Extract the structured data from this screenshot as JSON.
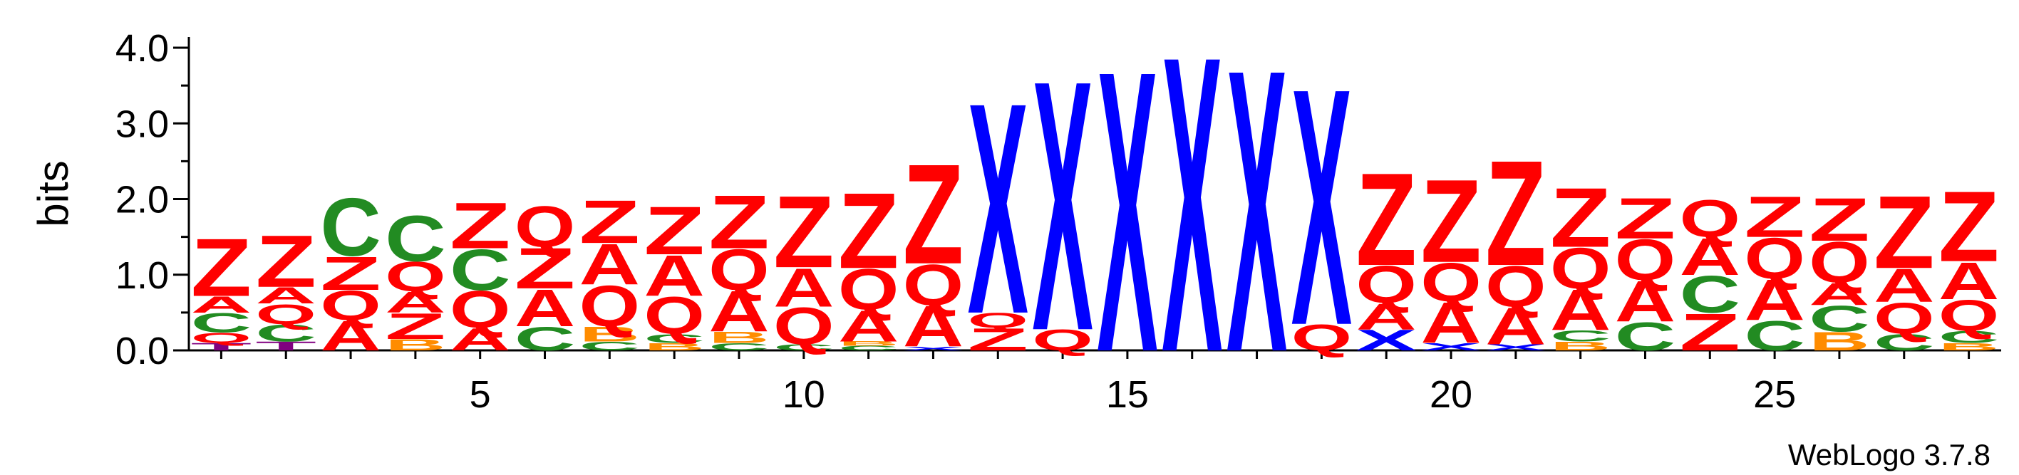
{
  "chart_data": {
    "type": "sequence-logo",
    "title": "",
    "ylabel": "bits",
    "xlabel": "",
    "ylim": [
      0,
      4.0
    ],
    "y_ticks": [
      "0.0",
      "1.0",
      "2.0",
      "3.0",
      "4.0"
    ],
    "x_ticks": [
      "5",
      "10",
      "15",
      "20",
      "25"
    ],
    "x_tick_values": [
      5,
      10,
      15,
      20,
      25
    ],
    "xlim": [
      0.5,
      28.5
    ],
    "footer": "WebLogo 3.7.8",
    "colors": {
      "Z": "#ff0000",
      "Q": "#ff0000",
      "A": "#ff0000",
      "X": "#0000ff",
      "C": "#228b22",
      "B": "#ff8c00",
      "T": "#800080"
    },
    "positions": [
      {
        "pos": 1,
        "letters": [
          [
            "T",
            0.1
          ],
          [
            "Q",
            0.14
          ],
          [
            "C",
            0.26
          ],
          [
            "A",
            0.22
          ],
          [
            "Z",
            0.78
          ]
        ]
      },
      {
        "pos": 2,
        "letters": [
          [
            "T",
            0.12
          ],
          [
            "C",
            0.23
          ],
          [
            "Q",
            0.27
          ],
          [
            "A",
            0.22
          ],
          [
            "Z",
            0.7
          ]
        ]
      },
      {
        "pos": 3,
        "letters": [
          [
            "A",
            0.4
          ],
          [
            "Q",
            0.4
          ],
          [
            "Z",
            0.45
          ],
          [
            "C",
            0.78
          ]
        ]
      },
      {
        "pos": 4,
        "letters": [
          [
            "B",
            0.15
          ],
          [
            "Z",
            0.35
          ],
          [
            "A",
            0.28
          ],
          [
            "Q",
            0.4
          ],
          [
            "C",
            0.62
          ]
        ]
      },
      {
        "pos": 5,
        "letters": [
          [
            "A",
            0.3
          ],
          [
            "Q",
            0.5
          ],
          [
            "C",
            0.55
          ],
          [
            "Z",
            0.62
          ]
        ]
      },
      {
        "pos": 6,
        "letters": [
          [
            "C",
            0.32
          ],
          [
            "A",
            0.5
          ],
          [
            "Z",
            0.55
          ],
          [
            "Q",
            0.55
          ]
        ]
      },
      {
        "pos": 7,
        "letters": [
          [
            "C",
            0.12
          ],
          [
            "B",
            0.2
          ],
          [
            "Q",
            0.55
          ],
          [
            "A",
            0.55
          ],
          [
            "Z",
            0.58
          ]
        ]
      },
      {
        "pos": 8,
        "letters": [
          [
            "B",
            0.1
          ],
          [
            "C",
            0.12
          ],
          [
            "Q",
            0.5
          ],
          [
            "A",
            0.55
          ],
          [
            "Z",
            0.65
          ]
        ]
      },
      {
        "pos": 9,
        "letters": [
          [
            "C",
            0.1
          ],
          [
            "B",
            0.15
          ],
          [
            "A",
            0.55
          ],
          [
            "Q",
            0.55
          ],
          [
            "Z",
            0.72
          ]
        ]
      },
      {
        "pos": 10,
        "letters": [
          [
            "C",
            0.08
          ],
          [
            "Q",
            0.5
          ],
          [
            "A",
            0.52
          ],
          [
            "Z",
            0.97
          ]
        ]
      },
      {
        "pos": 11,
        "letters": [
          [
            "C",
            0.06
          ],
          [
            "B",
            0.06
          ],
          [
            "A",
            0.42
          ],
          [
            "Q",
            0.55
          ],
          [
            "Z",
            1.02
          ]
        ]
      },
      {
        "pos": 12,
        "letters": [
          [
            "X",
            0.05
          ],
          [
            "A",
            0.55
          ],
          [
            "Q",
            0.55
          ],
          [
            "Z",
            1.35
          ]
        ]
      },
      {
        "pos": 13,
        "letters": [
          [
            "Z",
            0.3
          ],
          [
            "Q",
            0.2
          ],
          [
            "X",
            2.85
          ]
        ]
      },
      {
        "pos": 14,
        "letters": [
          [
            "Q",
            0.28
          ],
          [
            "X",
            3.38
          ]
        ]
      },
      {
        "pos": 15,
        "letters": [
          [
            "X",
            3.8
          ]
        ]
      },
      {
        "pos": 16,
        "letters": [
          [
            "X",
            4.0
          ]
        ]
      },
      {
        "pos": 17,
        "letters": [
          [
            "X",
            3.82
          ]
        ]
      },
      {
        "pos": 18,
        "letters": [
          [
            "Q",
            0.35
          ],
          [
            "X",
            3.2
          ]
        ]
      },
      {
        "pos": 19,
        "letters": [
          [
            "X",
            0.28
          ],
          [
            "A",
            0.35
          ],
          [
            "Q",
            0.5
          ],
          [
            "Z",
            1.25
          ]
        ]
      },
      {
        "pos": 20,
        "letters": [
          [
            "X",
            0.1
          ],
          [
            "A",
            0.55
          ],
          [
            "Q",
            0.52
          ],
          [
            "Z",
            1.12
          ]
        ]
      },
      {
        "pos": 21,
        "letters": [
          [
            "X",
            0.08
          ],
          [
            "A",
            0.5
          ],
          [
            "Q",
            0.55
          ],
          [
            "Z",
            1.42
          ]
        ]
      },
      {
        "pos": 22,
        "letters": [
          [
            "B",
            0.12
          ],
          [
            "C",
            0.15
          ],
          [
            "A",
            0.55
          ],
          [
            "Q",
            0.55
          ],
          [
            "Z",
            0.8
          ]
        ]
      },
      {
        "pos": 23,
        "letters": [
          [
            "C",
            0.38
          ],
          [
            "A",
            0.55
          ],
          [
            "Q",
            0.55
          ],
          [
            "Z",
            0.55
          ]
        ]
      },
      {
        "pos": 24,
        "letters": [
          [
            "Z",
            0.5
          ],
          [
            "C",
            0.5
          ],
          [
            "A",
            0.5
          ],
          [
            "Q",
            0.5
          ]
        ]
      },
      {
        "pos": 25,
        "letters": [
          [
            "C",
            0.4
          ],
          [
            "A",
            0.55
          ],
          [
            "Q",
            0.55
          ],
          [
            "Z",
            0.55
          ]
        ]
      },
      {
        "pos": 26,
        "letters": [
          [
            "B",
            0.25
          ],
          [
            "C",
            0.35
          ],
          [
            "A",
            0.3
          ],
          [
            "Q",
            0.55
          ],
          [
            "Z",
            0.58
          ]
        ]
      },
      {
        "pos": 27,
        "letters": [
          [
            "C",
            0.22
          ],
          [
            "Q",
            0.42
          ],
          [
            "A",
            0.45
          ],
          [
            "Z",
            0.98
          ]
        ]
      },
      {
        "pos": 28,
        "letters": [
          [
            "B",
            0.1
          ],
          [
            "C",
            0.16
          ],
          [
            "Q",
            0.42
          ],
          [
            "A",
            0.5
          ],
          [
            "Z",
            0.95
          ]
        ]
      }
    ]
  }
}
